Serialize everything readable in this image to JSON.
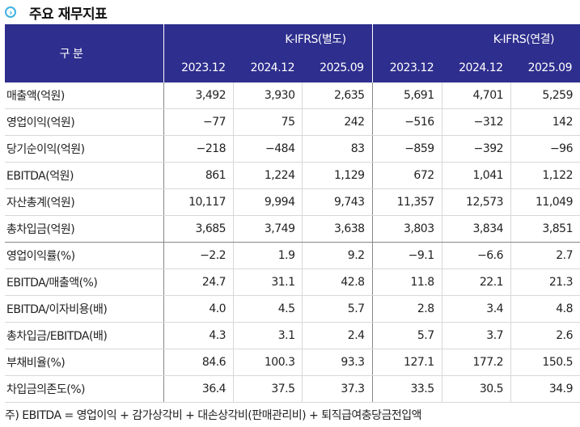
{
  "title": "주요 재무지표",
  "header": {
    "category": "구 분",
    "group1": "K-IFRS(별도)",
    "group2": "K-IFRS(연결)",
    "years": [
      "2023.12",
      "2024.12",
      "2025.09",
      "2023.12",
      "2024.12",
      "2025.09"
    ]
  },
  "rows": [
    {
      "label": "매출액(억원)",
      "values": [
        "3,492",
        "3,930",
        "2,635",
        "5,691",
        "4,701",
        "5,259"
      ]
    },
    {
      "label": "영업이익(억원)",
      "values": [
        "−77",
        "75",
        "242",
        "−516",
        "−312",
        "142"
      ]
    },
    {
      "label": "당기순이익(억원)",
      "values": [
        "−218",
        "−484",
        "83",
        "−859",
        "−392",
        "−96"
      ]
    },
    {
      "label": "EBITDA(억원)",
      "values": [
        "861",
        "1,224",
        "1,129",
        "672",
        "1,041",
        "1,122"
      ]
    },
    {
      "label": "자산총계(억원)",
      "values": [
        "10,117",
        "9,994",
        "9,743",
        "11,357",
        "12,573",
        "11,049"
      ]
    },
    {
      "label": "총차입금(억원)",
      "values": [
        "3,685",
        "3,749",
        "3,638",
        "3,803",
        "3,834",
        "3,851"
      ]
    },
    {
      "label": "영업이익률(%)",
      "values": [
        "−2.2",
        "1.9",
        "9.2",
        "−9.1",
        "−6.6",
        "2.7"
      ]
    },
    {
      "label": "EBITDA/매출액(%)",
      "values": [
        "24.7",
        "31.1",
        "42.8",
        "11.8",
        "22.1",
        "21.3"
      ]
    },
    {
      "label": "EBITDA/이자비용(배)",
      "values": [
        "4.0",
        "4.5",
        "5.7",
        "2.8",
        "3.4",
        "4.8"
      ]
    },
    {
      "label": "총차입금/EBITDA(배)",
      "values": [
        "4.3",
        "3.1",
        "2.4",
        "5.7",
        "3.7",
        "2.6"
      ]
    },
    {
      "label": "부채비율(%)",
      "values": [
        "84.6",
        "100.3",
        "93.3",
        "127.1",
        "177.2",
        "150.5"
      ]
    },
    {
      "label": "차입금의존도(%)",
      "values": [
        "36.4",
        "37.5",
        "37.3",
        "33.5",
        "30.5",
        "34.9"
      ]
    }
  ],
  "note": "주) EBITDA = 영업이익 + 감가상각비 + 대손상각비(판매관리비) + 퇴직급여충당금전입액"
}
